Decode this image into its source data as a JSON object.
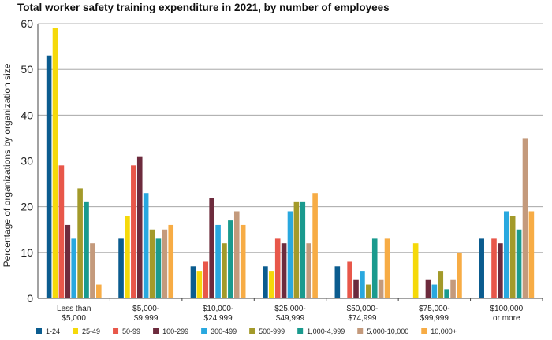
{
  "chart_data": {
    "type": "bar",
    "title": "Total worker safety training expenditure in 2021, by number of employees",
    "ylabel": "Percentage of organizations by organization size",
    "xlabel": "",
    "ylim": [
      0,
      60
    ],
    "yticks": [
      0,
      10,
      20,
      30,
      40,
      50,
      60
    ],
    "grid": true,
    "legend_position": "bottom",
    "categories": [
      [
        "Less than",
        "$5,000"
      ],
      [
        "$5,000-",
        "$9,999"
      ],
      [
        "$10,000-",
        "$24,999"
      ],
      [
        "$25,000-",
        "$49,999"
      ],
      [
        "$50,000-",
        "$74,999"
      ],
      [
        "$75,000-",
        "$99,999"
      ],
      [
        "$100,000",
        "or more"
      ]
    ],
    "series": [
      {
        "name": "1-24",
        "color": "#0b5c8f",
        "values": [
          53,
          13,
          7,
          7,
          7,
          0,
          13
        ]
      },
      {
        "name": "25-49",
        "color": "#f5d90a",
        "values": [
          59,
          18,
          6,
          6,
          0,
          12,
          0
        ]
      },
      {
        "name": "50-99",
        "color": "#e8574a",
        "values": [
          29,
          29,
          8,
          13,
          8,
          0,
          13
        ]
      },
      {
        "name": "100-299",
        "color": "#6d2b3d",
        "values": [
          16,
          31,
          22,
          12,
          4,
          4,
          12
        ]
      },
      {
        "name": "300-499",
        "color": "#29a8df",
        "values": [
          13,
          23,
          16,
          19,
          6,
          3,
          19
        ]
      },
      {
        "name": "500-999",
        "color": "#a39a2a",
        "values": [
          24,
          15,
          12,
          21,
          3,
          6,
          18
        ]
      },
      {
        "name": "1,000-4,999",
        "color": "#1a9a8e",
        "values": [
          21,
          13,
          17,
          21,
          13,
          2,
          15
        ]
      },
      {
        "name": "5,000-10,000",
        "color": "#c49a7c",
        "values": [
          12,
          15,
          19,
          12,
          4,
          4,
          35
        ]
      },
      {
        "name": "10,000+",
        "color": "#f7ac45",
        "values": [
          3,
          16,
          16,
          23,
          13,
          10,
          19
        ]
      }
    ]
  }
}
